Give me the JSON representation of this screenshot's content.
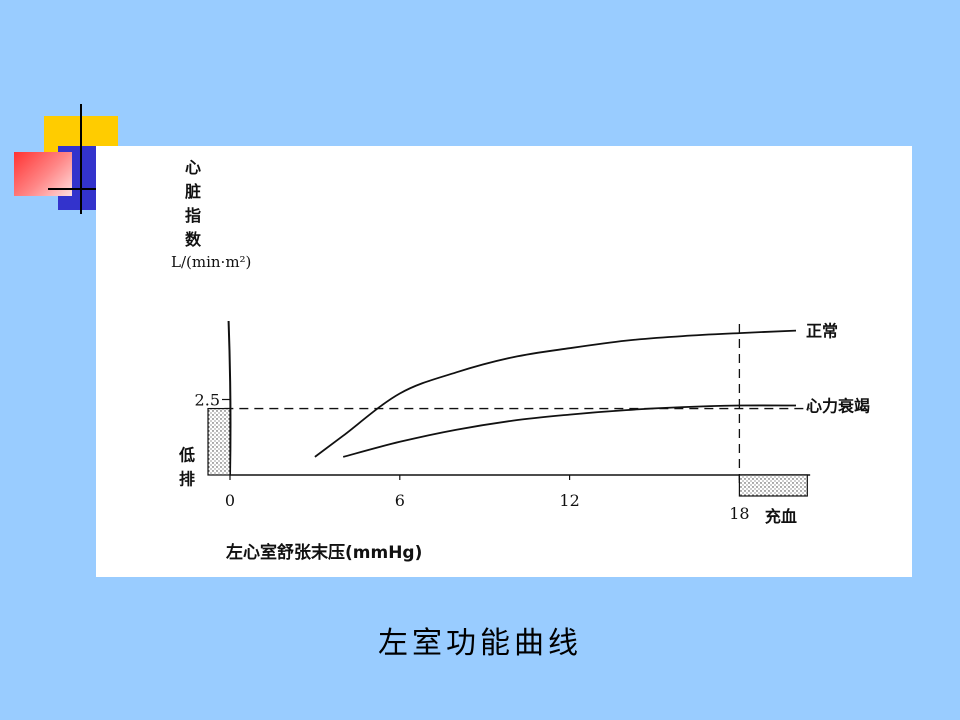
{
  "caption": "左室功能曲线",
  "chart_data": {
    "type": "line",
    "x": [
      3,
      4,
      6,
      8,
      10,
      12,
      14,
      16,
      18,
      20
    ],
    "series": [
      {
        "name": "正常",
        "values": [
          0.6,
          1.3,
          2.7,
          3.4,
          3.9,
          4.2,
          4.45,
          4.6,
          4.7,
          4.78
        ]
      },
      {
        "name": "心力衰竭",
        "values": [
          null,
          0.6,
          1.1,
          1.5,
          1.8,
          2.0,
          2.15,
          2.25,
          2.3,
          2.3
        ]
      }
    ],
    "ylabel_chars": [
      "心",
      "脏",
      "指",
      "数"
    ],
    "yunit": "L/(min·m²)",
    "xlabel": "左心室舒张末压(mmHg)",
    "xticks": [
      "0",
      "6",
      "12",
      "18"
    ],
    "yticks": [
      "2.5"
    ],
    "threshold_y": 2.2,
    "threshold_x": 18,
    "low_output_label_chars": [
      "低",
      "排"
    ],
    "congestion_label": "充血",
    "xlim": [
      -1,
      21
    ],
    "ylim": [
      0,
      5.2
    ]
  }
}
